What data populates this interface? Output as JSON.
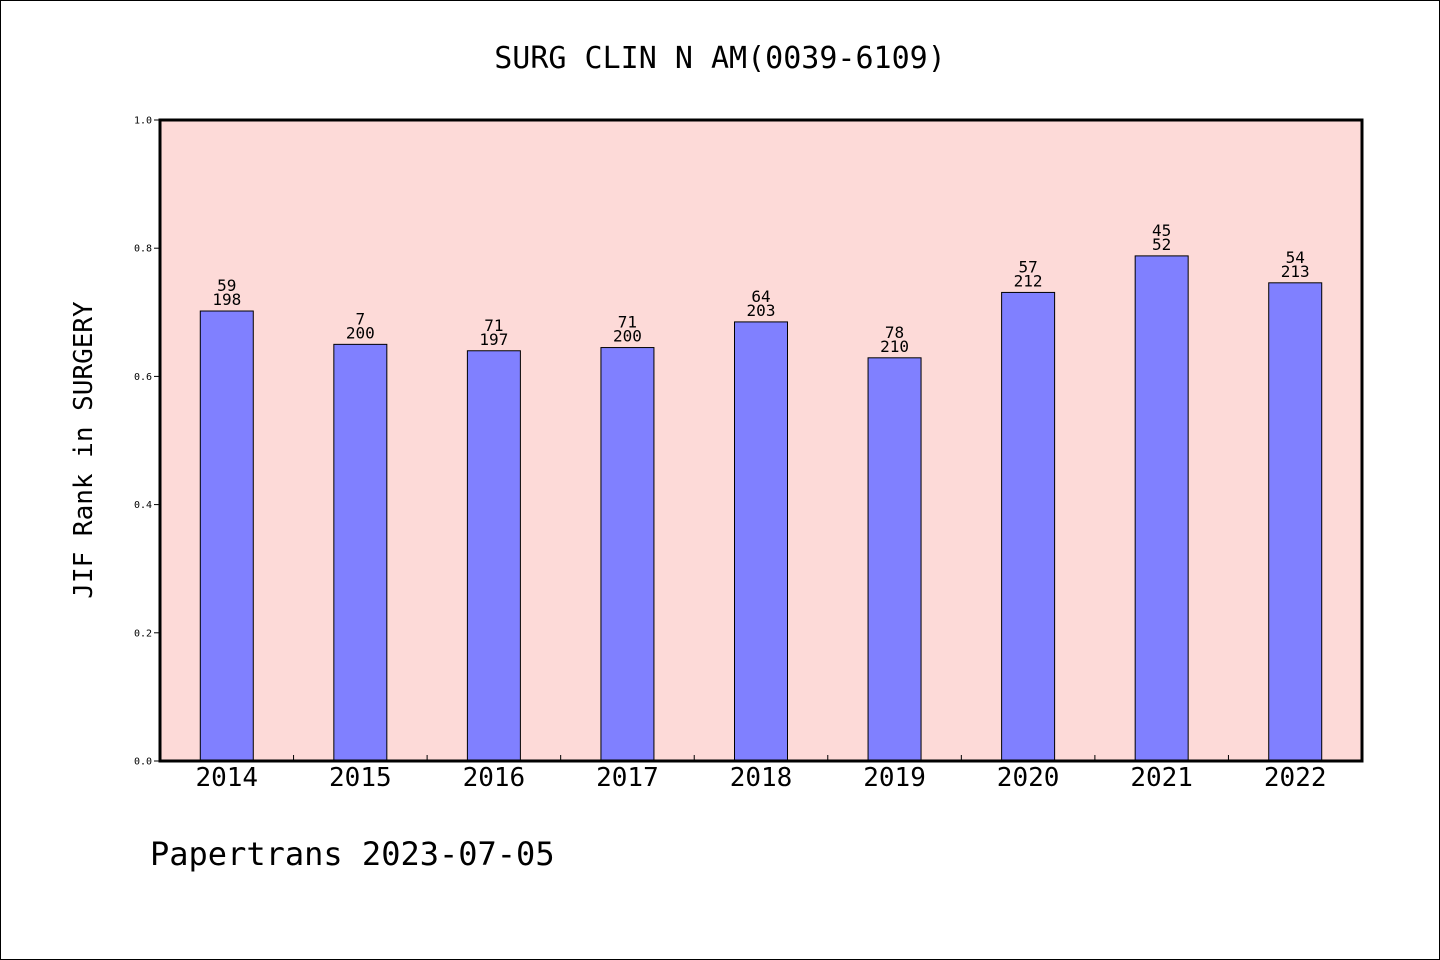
{
  "chart_data": {
    "type": "bar",
    "title": "SURG CLIN N AM(0039-6109)",
    "xlabel": "",
    "ylabel": "JIF Rank in SURGERY",
    "ylim": [
      0,
      1.0
    ],
    "yticks": [
      "0.0",
      "0.2",
      "0.4",
      "0.6",
      "0.8",
      "1.0"
    ],
    "grid": false,
    "categories": [
      "2014",
      "2015",
      "2016",
      "2017",
      "2018",
      "2019",
      "2020",
      "2021",
      "2022"
    ],
    "values": [
      0.702,
      0.65,
      0.64,
      0.645,
      0.685,
      0.629,
      0.731,
      0.788,
      0.746
    ],
    "rank": [
      "59",
      "7",
      "71",
      "71",
      "64",
      "78",
      "57",
      "45",
      "54"
    ],
    "total": [
      "198",
      "200",
      "197",
      "200",
      "203",
      "210",
      "212",
      "52",
      "213"
    ],
    "bar_color": "#8080ff",
    "plot_background": "#fddad8"
  },
  "footer": {
    "watermark": "Papertrans 2023-07-05"
  }
}
